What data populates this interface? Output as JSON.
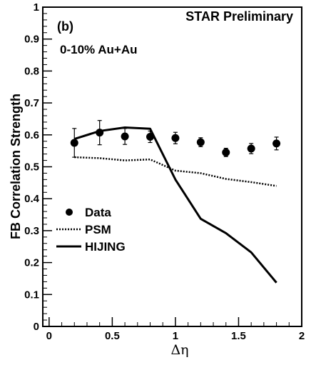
{
  "chart_data": {
    "type": "line",
    "xlabel": "Δη",
    "ylabel": "FB Correlation Strength",
    "xlim": [
      -0.05,
      2.0
    ],
    "ylim": [
      0,
      1.0
    ],
    "x_ticks": [
      "0",
      "0.5",
      "1",
      "1.5",
      "2"
    ],
    "y_ticks": [
      "0",
      "0.1",
      "0.2",
      "0.3",
      "0.4",
      "0.5",
      "0.6",
      "0.7",
      "0.8",
      "0.9",
      "1"
    ],
    "annotations": {
      "panel": "(b)",
      "system": "0-10% Au+Au",
      "experiment": "STAR Preliminary"
    },
    "legend": {
      "position": "left-middle"
    },
    "series": [
      {
        "name": "Data",
        "style": "markers-errorbars",
        "x": [
          0.2,
          0.4,
          0.6,
          0.8,
          1.0,
          1.2,
          1.4,
          1.6,
          1.8
        ],
        "y": [
          0.575,
          0.607,
          0.595,
          0.594,
          0.59,
          0.577,
          0.545,
          0.557,
          0.573
        ],
        "err": [
          0.045,
          0.038,
          0.025,
          0.018,
          0.018,
          0.014,
          0.013,
          0.016,
          0.02
        ]
      },
      {
        "name": "PSM",
        "style": "dotted",
        "x": [
          0.2,
          0.4,
          0.6,
          0.8,
          1.0,
          1.2,
          1.4,
          1.6,
          1.8
        ],
        "y": [
          0.53,
          0.527,
          0.52,
          0.523,
          0.488,
          0.48,
          0.462,
          0.452,
          0.44
        ]
      },
      {
        "name": "HIJING",
        "style": "solid",
        "x": [
          0.2,
          0.4,
          0.6,
          0.8,
          1.0,
          1.2,
          1.4,
          1.6,
          1.8
        ],
        "y": [
          0.587,
          0.612,
          0.623,
          0.619,
          0.46,
          0.337,
          0.292,
          0.232,
          0.137
        ]
      }
    ]
  }
}
